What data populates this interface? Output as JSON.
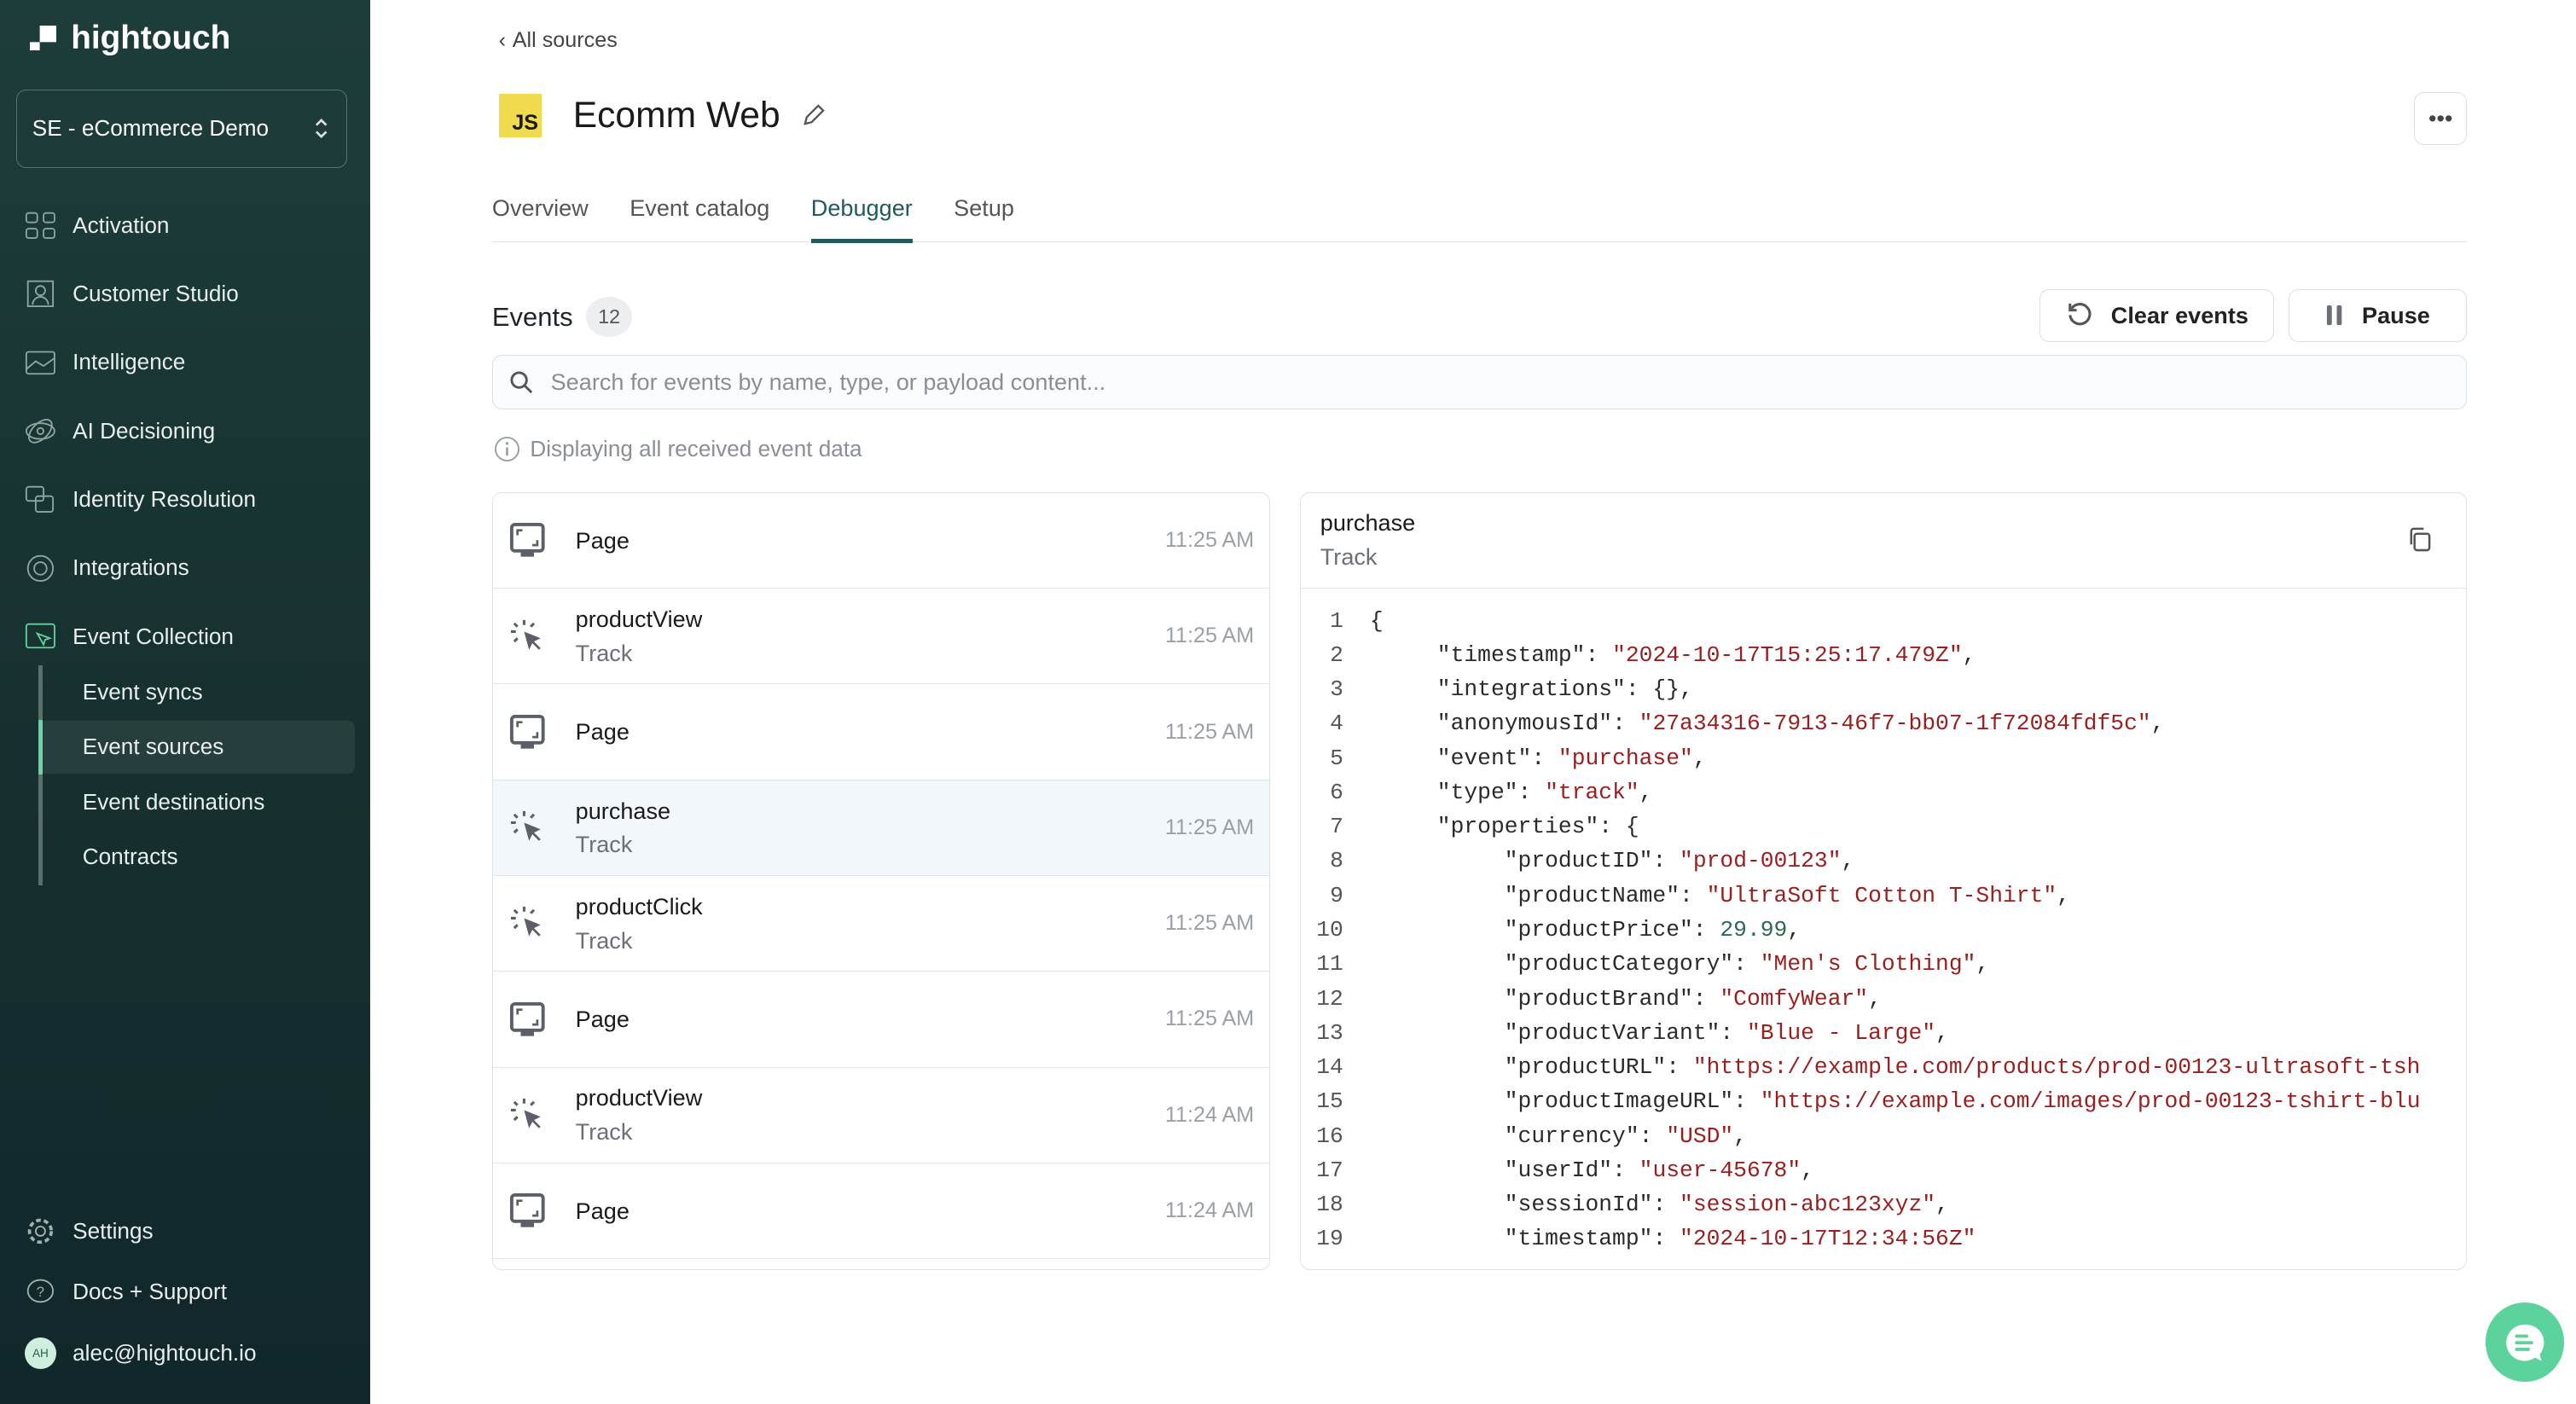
{
  "brand": {
    "name": "hightouch"
  },
  "sidebar": {
    "workspace": "SE - eCommerce Demo",
    "items": [
      {
        "label": "Activation",
        "icon": "activation-icon"
      },
      {
        "label": "Customer Studio",
        "icon": "customer-studio-icon"
      },
      {
        "label": "Intelligence",
        "icon": "intelligence-icon"
      },
      {
        "label": "AI Decisioning",
        "icon": "ai-decisioning-icon"
      },
      {
        "label": "Identity Resolution",
        "icon": "identity-resolution-icon"
      },
      {
        "label": "Integrations",
        "icon": "integrations-icon"
      },
      {
        "label": "Event Collection",
        "icon": "event-collection-icon",
        "active": true
      }
    ],
    "subitems": [
      {
        "label": "Event syncs"
      },
      {
        "label": "Event sources",
        "active": true
      },
      {
        "label": "Event destinations"
      },
      {
        "label": "Contracts"
      }
    ],
    "settings": "Settings",
    "docs": "Docs + Support",
    "user": {
      "initials": "AH",
      "email": "alec@hightouch.io"
    }
  },
  "header": {
    "back": "All sources",
    "title": "Ecomm Web",
    "source_icon": "JS"
  },
  "tabs": [
    {
      "label": "Overview"
    },
    {
      "label": "Event catalog"
    },
    {
      "label": "Debugger",
      "active": true
    },
    {
      "label": "Setup"
    }
  ],
  "events": {
    "title": "Events",
    "count": "12",
    "clear_label": "Clear events",
    "pause_label": "Pause",
    "search_placeholder": "Search for events by name, type, or payload content...",
    "info": "Displaying all received event data",
    "list": [
      {
        "name": "Page",
        "type": "",
        "time": "11:25 AM",
        "kind": "page"
      },
      {
        "name": "productView",
        "type": "Track",
        "time": "11:25 AM",
        "kind": "track"
      },
      {
        "name": "Page",
        "type": "",
        "time": "11:25 AM",
        "kind": "page"
      },
      {
        "name": "purchase",
        "type": "Track",
        "time": "11:25 AM",
        "kind": "track",
        "selected": true
      },
      {
        "name": "productClick",
        "type": "Track",
        "time": "11:25 AM",
        "kind": "track"
      },
      {
        "name": "Page",
        "type": "",
        "time": "11:25 AM",
        "kind": "page"
      },
      {
        "name": "productView",
        "type": "Track",
        "time": "11:24 AM",
        "kind": "track"
      },
      {
        "name": "Page",
        "type": "",
        "time": "11:24 AM",
        "kind": "page"
      }
    ]
  },
  "detail": {
    "name": "purchase",
    "type": "Track",
    "lines": [
      {
        "i": 0,
        "t": [
          [
            "p",
            "{"
          ]
        ]
      },
      {
        "i": 1,
        "t": [
          [
            "k",
            "\"timestamp\""
          ],
          [
            "p",
            ": "
          ],
          [
            "s",
            "\"2024-10-17T15:25:17.479Z\""
          ],
          [
            "p",
            ","
          ]
        ]
      },
      {
        "i": 1,
        "t": [
          [
            "k",
            "\"integrations\""
          ],
          [
            "p",
            ": {},"
          ]
        ]
      },
      {
        "i": 1,
        "t": [
          [
            "k",
            "\"anonymousId\""
          ],
          [
            "p",
            ": "
          ],
          [
            "s",
            "\"27a34316-7913-46f7-bb07-1f72084fdf5c\""
          ],
          [
            "p",
            ","
          ]
        ]
      },
      {
        "i": 1,
        "t": [
          [
            "k",
            "\"event\""
          ],
          [
            "p",
            ": "
          ],
          [
            "s",
            "\"purchase\""
          ],
          [
            "p",
            ","
          ]
        ]
      },
      {
        "i": 1,
        "t": [
          [
            "k",
            "\"type\""
          ],
          [
            "p",
            ": "
          ],
          [
            "s",
            "\"track\""
          ],
          [
            "p",
            ","
          ]
        ]
      },
      {
        "i": 1,
        "t": [
          [
            "k",
            "\"properties\""
          ],
          [
            "p",
            ": {"
          ]
        ]
      },
      {
        "i": 2,
        "t": [
          [
            "k",
            "\"productID\""
          ],
          [
            "p",
            ": "
          ],
          [
            "s",
            "\"prod-00123\""
          ],
          [
            "p",
            ","
          ]
        ]
      },
      {
        "i": 2,
        "t": [
          [
            "k",
            "\"productName\""
          ],
          [
            "p",
            ": "
          ],
          [
            "s",
            "\"UltraSoft Cotton T-Shirt\""
          ],
          [
            "p",
            ","
          ]
        ]
      },
      {
        "i": 2,
        "t": [
          [
            "k",
            "\"productPrice\""
          ],
          [
            "p",
            ": "
          ],
          [
            "num",
            "29.99"
          ],
          [
            "p",
            ","
          ]
        ]
      },
      {
        "i": 2,
        "t": [
          [
            "k",
            "\"productCategory\""
          ],
          [
            "p",
            ": "
          ],
          [
            "s",
            "\"Men's Clothing\""
          ],
          [
            "p",
            ","
          ]
        ]
      },
      {
        "i": 2,
        "t": [
          [
            "k",
            "\"productBrand\""
          ],
          [
            "p",
            ": "
          ],
          [
            "s",
            "\"ComfyWear\""
          ],
          [
            "p",
            ","
          ]
        ]
      },
      {
        "i": 2,
        "t": [
          [
            "k",
            "\"productVariant\""
          ],
          [
            "p",
            ": "
          ],
          [
            "s",
            "\"Blue - Large\""
          ],
          [
            "p",
            ","
          ]
        ]
      },
      {
        "i": 2,
        "t": [
          [
            "k",
            "\"productURL\""
          ],
          [
            "p",
            ": "
          ],
          [
            "s",
            "\"https://example.com/products/prod-00123-ultrasoft-tsh"
          ]
        ]
      },
      {
        "i": 2,
        "t": [
          [
            "k",
            "\"productImageURL\""
          ],
          [
            "p",
            ": "
          ],
          [
            "s",
            "\"https://example.com/images/prod-00123-tshirt-blu"
          ]
        ]
      },
      {
        "i": 2,
        "t": [
          [
            "k",
            "\"currency\""
          ],
          [
            "p",
            ": "
          ],
          [
            "s",
            "\"USD\""
          ],
          [
            "p",
            ","
          ]
        ]
      },
      {
        "i": 2,
        "t": [
          [
            "k",
            "\"userId\""
          ],
          [
            "p",
            ": "
          ],
          [
            "s",
            "\"user-45678\""
          ],
          [
            "p",
            ","
          ]
        ]
      },
      {
        "i": 2,
        "t": [
          [
            "k",
            "\"sessionId\""
          ],
          [
            "p",
            ": "
          ],
          [
            "s",
            "\"session-abc123xyz\""
          ],
          [
            "p",
            ","
          ]
        ]
      },
      {
        "i": 2,
        "t": [
          [
            "k",
            "\"timestamp\""
          ],
          [
            "p",
            ": "
          ],
          [
            "s",
            "\"2024-10-17T12:34:56Z\""
          ]
        ]
      }
    ]
  },
  "colors": {
    "sidebar_bg": "#173230",
    "accent": "#1f5a5c",
    "active_indicator": "#5fd39a",
    "chat": "#5cd39c",
    "string": "#9a1e1e",
    "number": "#2d6a4f",
    "js_badge": "#f0db4f"
  }
}
